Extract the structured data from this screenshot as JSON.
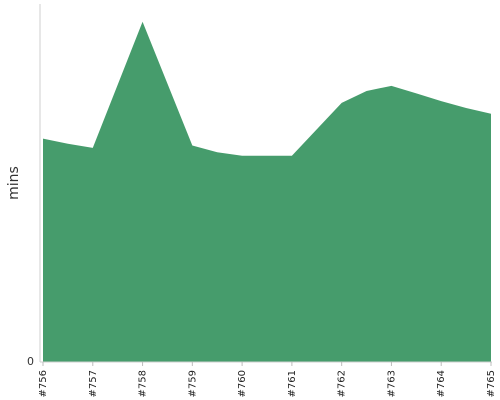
{
  "chart_data": {
    "type": "area",
    "categories": [
      "#756",
      "#757",
      "#758",
      "#759",
      "#760",
      "#761",
      "#762",
      "#763",
      "#764",
      "#765"
    ],
    "x": [
      0,
      0.5,
      1,
      2,
      3,
      3.5,
      4,
      5,
      6,
      6.5,
      7,
      7.5,
      8,
      8.5,
      9
    ],
    "values": [
      65.5,
      64,
      62.8,
      99.8,
      63.5,
      61.5,
      60.5,
      60.5,
      76,
      79.5,
      81,
      78.8,
      76.5,
      74.5,
      72.8
    ],
    "title": "",
    "xlabel": "",
    "ylabel": "mins",
    "ylim": [
      0,
      105
    ],
    "yticks": [
      {
        "value": 0,
        "label": "0"
      }
    ],
    "grid": false,
    "legend": "none",
    "color": "#469c6c"
  }
}
